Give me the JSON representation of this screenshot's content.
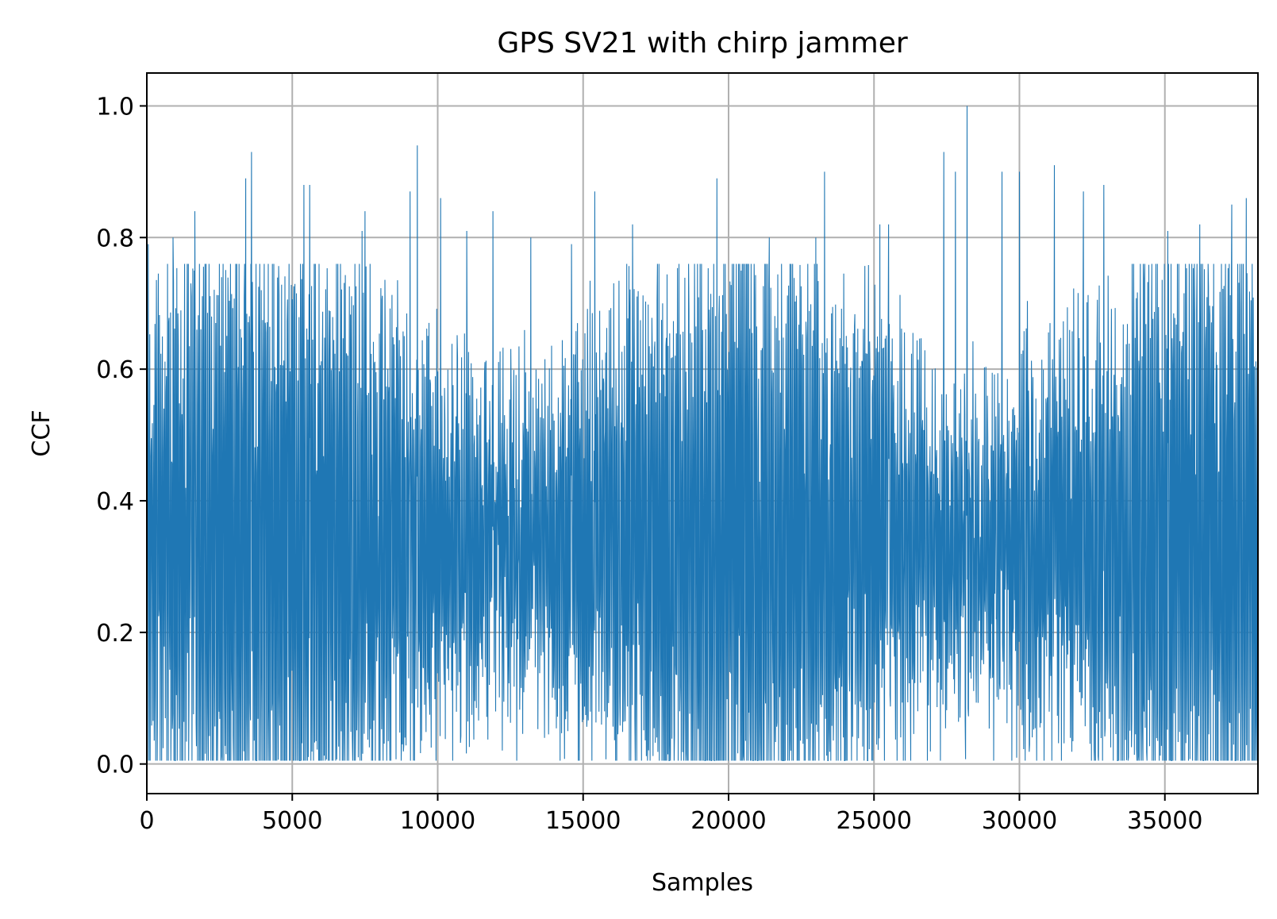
{
  "chart_data": {
    "type": "line",
    "title": "GPS SV21 with chirp jammer",
    "xlabel": "Samples",
    "ylabel": "CCF",
    "xlim": [
      0,
      38200
    ],
    "ylim": [
      -0.045,
      1.05
    ],
    "xticks": [
      0,
      5000,
      10000,
      15000,
      20000,
      25000,
      30000,
      35000
    ],
    "xtick_labels": [
      "0",
      "5000",
      "10000",
      "15000",
      "20000",
      "25000",
      "30000",
      "35000"
    ],
    "yticks": [
      0.0,
      0.2,
      0.4,
      0.6,
      0.8,
      1.0
    ],
    "ytick_labels": [
      "0.0",
      "0.2",
      "0.4",
      "0.6",
      "0.8",
      "1.0"
    ],
    "grid": true,
    "series": [
      {
        "color": "#1f77b4",
        "n_samples": 38192,
        "mean": 0.33,
        "min": 0.0,
        "max": 1.0,
        "peaks": [
          {
            "x": 50,
            "y": 0.79
          },
          {
            "x": 900,
            "y": 0.8
          },
          {
            "x": 1650,
            "y": 0.84
          },
          {
            "x": 3400,
            "y": 0.89
          },
          {
            "x": 3600,
            "y": 0.93
          },
          {
            "x": 5400,
            "y": 0.88
          },
          {
            "x": 5600,
            "y": 0.88
          },
          {
            "x": 7400,
            "y": 0.81
          },
          {
            "x": 7500,
            "y": 0.84
          },
          {
            "x": 9050,
            "y": 0.87
          },
          {
            "x": 9300,
            "y": 0.94
          },
          {
            "x": 10100,
            "y": 0.86
          },
          {
            "x": 11000,
            "y": 0.81
          },
          {
            "x": 11900,
            "y": 0.84
          },
          {
            "x": 13200,
            "y": 0.8
          },
          {
            "x": 14600,
            "y": 0.79
          },
          {
            "x": 15400,
            "y": 0.87
          },
          {
            "x": 16700,
            "y": 0.82
          },
          {
            "x": 19600,
            "y": 0.89
          },
          {
            "x": 21400,
            "y": 0.8
          },
          {
            "x": 23000,
            "y": 0.8
          },
          {
            "x": 23300,
            "y": 0.9
          },
          {
            "x": 25200,
            "y": 0.82
          },
          {
            "x": 25500,
            "y": 0.82
          },
          {
            "x": 27400,
            "y": 0.93
          },
          {
            "x": 27800,
            "y": 0.9
          },
          {
            "x": 28200,
            "y": 1.0
          },
          {
            "x": 29400,
            "y": 0.9
          },
          {
            "x": 30000,
            "y": 0.9
          },
          {
            "x": 31200,
            "y": 0.91
          },
          {
            "x": 32200,
            "y": 0.87
          },
          {
            "x": 32900,
            "y": 0.88
          },
          {
            "x": 35100,
            "y": 0.81
          },
          {
            "x": 36200,
            "y": 0.82
          },
          {
            "x": 37300,
            "y": 0.85
          },
          {
            "x": 37800,
            "y": 0.86
          }
        ]
      }
    ]
  }
}
